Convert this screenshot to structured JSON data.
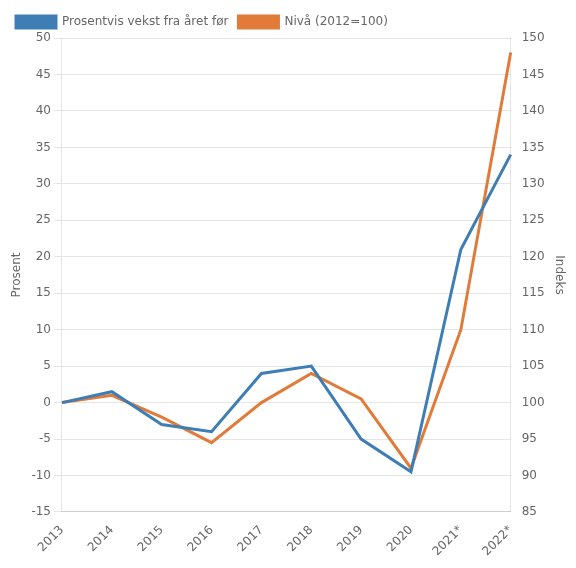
{
  "chart_data": {
    "type": "line",
    "categories": [
      "2013",
      "2014",
      "2015",
      "2016",
      "2017",
      "2018",
      "2019",
      "2020",
      "2021*",
      "2022*"
    ],
    "series": [
      {
        "name": "Prosentvis vekst fra året før",
        "color": "#3E7EB5",
        "marker": "none",
        "axis": "y",
        "values": [
          0.0,
          1.5,
          -3.0,
          -4.0,
          4.0,
          5.0,
          -5.0,
          -9.5,
          21.0,
          34.0
        ]
      },
      {
        "name": "Nivå (2012=100)",
        "color": "#E07B39",
        "marker": "none",
        "axis": "y2",
        "values": [
          100.0,
          101.0,
          98.0,
          94.5,
          100.0,
          104.0,
          100.5,
          91.0,
          110.0,
          148.0
        ]
      }
    ],
    "ylabel": "Prosent",
    "y2label": "Indeks",
    "ylim": [
      -15,
      50
    ],
    "yticks": [
      -15,
      -10,
      -5,
      0,
      5,
      10,
      15,
      20,
      25,
      30,
      35,
      40,
      45,
      50
    ],
    "y2lim": [
      85,
      150
    ],
    "y2ticks": [
      85,
      90,
      95,
      100,
      105,
      110,
      115,
      120,
      125,
      130,
      135,
      140,
      145,
      150
    ],
    "grid": true,
    "legend": "upper left"
  }
}
